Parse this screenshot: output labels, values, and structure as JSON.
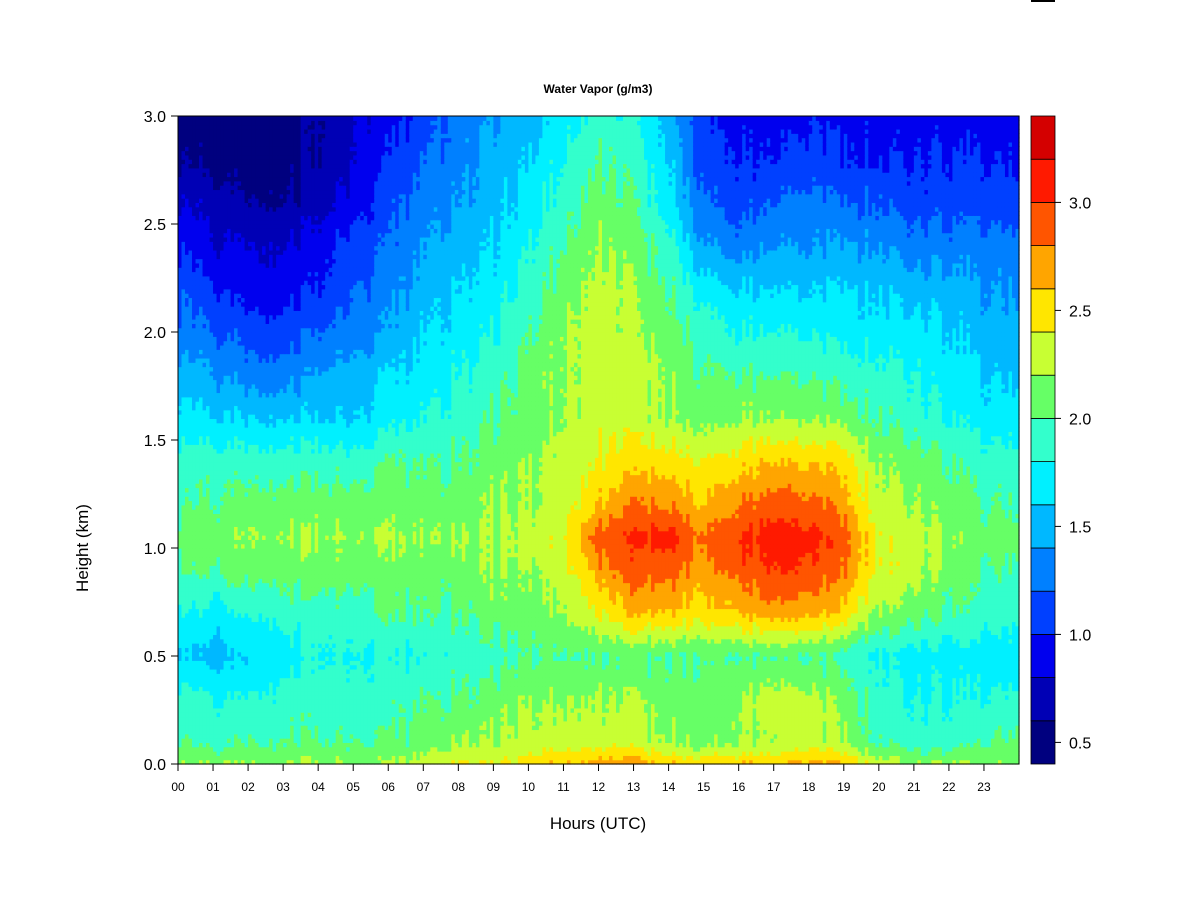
{
  "chart_data": {
    "type": "heatmap",
    "title": "Water Vapor (g/m3)",
    "xlabel": "Hours (UTC)",
    "ylabel": "Height (km)",
    "xlim": [
      0,
      24
    ],
    "ylim": [
      0.0,
      3.0
    ],
    "x_ticks": [
      "00",
      "01",
      "02",
      "03",
      "04",
      "05",
      "06",
      "07",
      "08",
      "09",
      "10",
      "11",
      "12",
      "13",
      "14",
      "15",
      "16",
      "17",
      "18",
      "19",
      "20",
      "21",
      "22",
      "23"
    ],
    "y_ticks": [
      "0.0",
      "0.5",
      "1.0",
      "1.5",
      "2.0",
      "2.5",
      "3.0"
    ],
    "colorbar": {
      "levels": [
        0.4,
        0.6,
        0.8,
        1.0,
        1.2,
        1.4,
        1.6,
        1.8,
        2.0,
        2.2,
        2.4,
        2.6,
        2.8,
        3.0,
        3.2,
        3.4
      ],
      "colors": [
        "#00007f",
        "#0000b5",
        "#0000ee",
        "#0040ff",
        "#0080ff",
        "#00b8ff",
        "#00f0ff",
        "#33ffcc",
        "#66ff66",
        "#c8ff33",
        "#ffe600",
        "#ffa500",
        "#ff5500",
        "#ff1a00",
        "#d40000",
        "#800000"
      ],
      "tick_labels": [
        "0.5",
        "1.0",
        "1.5",
        "2.0",
        "2.5",
        "3.0"
      ],
      "tick_values": [
        0.5,
        1.0,
        1.5,
        2.0,
        2.5,
        3.0
      ]
    },
    "hours": [
      0,
      1,
      2,
      3,
      4,
      5,
      6,
      7,
      8,
      9,
      10,
      11,
      12,
      13,
      14,
      15,
      16,
      17,
      18,
      19,
      20,
      21,
      22,
      23,
      24
    ],
    "heights_km": [
      0.0,
      0.1,
      0.3,
      0.5,
      0.7,
      0.9,
      1.05,
      1.2,
      1.4,
      1.6,
      1.8,
      2.0,
      2.2,
      2.4,
      2.6,
      2.8,
      3.0
    ],
    "values": [
      [
        2.2,
        2.2,
        2.2,
        2.2,
        2.2,
        2.2,
        2.2,
        2.3,
        2.4,
        2.4,
        2.5,
        2.6,
        2.7,
        2.7,
        2.6,
        2.5,
        2.6,
        2.6,
        2.7,
        2.6,
        2.3,
        2.2,
        2.2,
        2.2,
        2.2
      ],
      [
        2.0,
        1.9,
        2.0,
        2.0,
        2.0,
        2.0,
        2.0,
        2.1,
        2.2,
        2.2,
        2.3,
        2.3,
        2.3,
        2.3,
        2.2,
        2.1,
        2.2,
        2.2,
        2.3,
        2.2,
        2.0,
        1.9,
        1.9,
        2.0,
        2.1
      ],
      [
        1.9,
        1.8,
        1.8,
        1.9,
        1.9,
        1.9,
        1.9,
        2.0,
        2.0,
        2.1,
        2.2,
        2.2,
        2.2,
        2.2,
        2.1,
        2.1,
        2.2,
        2.3,
        2.3,
        2.1,
        1.9,
        1.8,
        1.8,
        1.8,
        1.9
      ],
      [
        1.6,
        1.5,
        1.6,
        1.7,
        1.8,
        1.8,
        1.8,
        1.8,
        1.9,
        1.9,
        2.0,
        2.0,
        2.0,
        2.0,
        2.0,
        2.0,
        2.0,
        2.0,
        2.0,
        1.9,
        1.8,
        1.7,
        1.7,
        1.7,
        1.7
      ],
      [
        1.8,
        1.7,
        1.8,
        1.9,
        1.9,
        1.9,
        2.0,
        2.0,
        2.0,
        2.1,
        2.1,
        2.2,
        2.4,
        2.6,
        2.6,
        2.5,
        2.6,
        2.7,
        2.7,
        2.5,
        2.2,
        2.1,
        2.0,
        1.9,
        1.9
      ],
      [
        2.0,
        2.0,
        2.1,
        2.1,
        2.1,
        2.1,
        2.1,
        2.1,
        2.1,
        2.2,
        2.2,
        2.3,
        2.7,
        2.9,
        2.9,
        2.7,
        2.9,
        3.0,
        3.0,
        2.8,
        2.4,
        2.3,
        2.1,
        2.0,
        2.0
      ],
      [
        2.1,
        2.1,
        2.2,
        2.2,
        2.2,
        2.2,
        2.2,
        2.2,
        2.2,
        2.2,
        2.3,
        2.4,
        2.9,
        3.0,
        3.1,
        2.8,
        3.0,
        3.1,
        3.1,
        2.9,
        2.4,
        2.3,
        2.2,
        2.1,
        2.1
      ],
      [
        2.0,
        2.0,
        2.1,
        2.1,
        2.1,
        2.1,
        2.1,
        2.1,
        2.1,
        2.2,
        2.2,
        2.3,
        2.6,
        2.8,
        2.8,
        2.6,
        2.8,
        2.9,
        2.9,
        2.7,
        2.3,
        2.2,
        2.1,
        2.0,
        2.0
      ],
      [
        1.9,
        1.9,
        1.9,
        1.9,
        1.9,
        1.9,
        2.0,
        2.0,
        2.0,
        2.1,
        2.2,
        2.3,
        2.4,
        2.5,
        2.5,
        2.4,
        2.5,
        2.6,
        2.6,
        2.5,
        2.2,
        2.1,
        2.0,
        1.9,
        1.9
      ],
      [
        1.7,
        1.6,
        1.6,
        1.6,
        1.6,
        1.6,
        1.7,
        1.8,
        1.9,
        2.0,
        2.1,
        2.2,
        2.3,
        2.3,
        2.2,
        2.1,
        2.2,
        2.2,
        2.2,
        2.1,
        2.0,
        1.9,
        1.8,
        1.7,
        1.7
      ],
      [
        1.5,
        1.4,
        1.3,
        1.3,
        1.4,
        1.5,
        1.6,
        1.7,
        1.8,
        1.9,
        2.1,
        2.2,
        2.3,
        2.3,
        2.2,
        2.0,
        2.0,
        2.0,
        2.0,
        1.9,
        1.9,
        1.8,
        1.7,
        1.6,
        1.6
      ],
      [
        1.3,
        1.2,
        1.1,
        1.1,
        1.2,
        1.3,
        1.4,
        1.6,
        1.7,
        1.8,
        2.0,
        2.2,
        2.3,
        2.2,
        2.1,
        1.9,
        1.8,
        1.8,
        1.8,
        1.7,
        1.7,
        1.7,
        1.6,
        1.5,
        1.5
      ],
      [
        1.2,
        1.0,
        0.9,
        0.9,
        1.0,
        1.2,
        1.3,
        1.5,
        1.6,
        1.7,
        1.9,
        2.1,
        2.3,
        2.2,
        2.0,
        1.7,
        1.6,
        1.6,
        1.6,
        1.6,
        1.6,
        1.5,
        1.5,
        1.4,
        1.4
      ],
      [
        1.0,
        0.8,
        0.8,
        0.8,
        0.9,
        1.1,
        1.2,
        1.4,
        1.5,
        1.6,
        1.8,
        2.0,
        2.2,
        2.1,
        1.9,
        1.4,
        1.3,
        1.4,
        1.4,
        1.4,
        1.4,
        1.3,
        1.3,
        1.3,
        1.3
      ],
      [
        0.8,
        0.7,
        0.6,
        0.6,
        0.7,
        0.9,
        1.1,
        1.3,
        1.4,
        1.5,
        1.7,
        1.9,
        2.1,
        2.0,
        1.7,
        1.2,
        1.1,
        1.2,
        1.3,
        1.2,
        1.2,
        1.1,
        1.1,
        1.1,
        1.1
      ],
      [
        0.6,
        0.5,
        0.5,
        0.5,
        0.6,
        0.8,
        1.0,
        1.2,
        1.3,
        1.5,
        1.6,
        1.8,
        2.0,
        1.9,
        1.6,
        1.1,
        1.0,
        1.0,
        1.1,
        1.0,
        1.0,
        1.0,
        1.0,
        1.0,
        1.0
      ],
      [
        0.5,
        0.5,
        0.4,
        0.5,
        0.6,
        0.8,
        0.9,
        1.1,
        1.3,
        1.4,
        1.5,
        1.7,
        1.9,
        1.8,
        1.5,
        1.0,
        0.9,
        0.9,
        1.0,
        0.9,
        0.9,
        0.9,
        0.9,
        0.9,
        0.9
      ]
    ]
  }
}
